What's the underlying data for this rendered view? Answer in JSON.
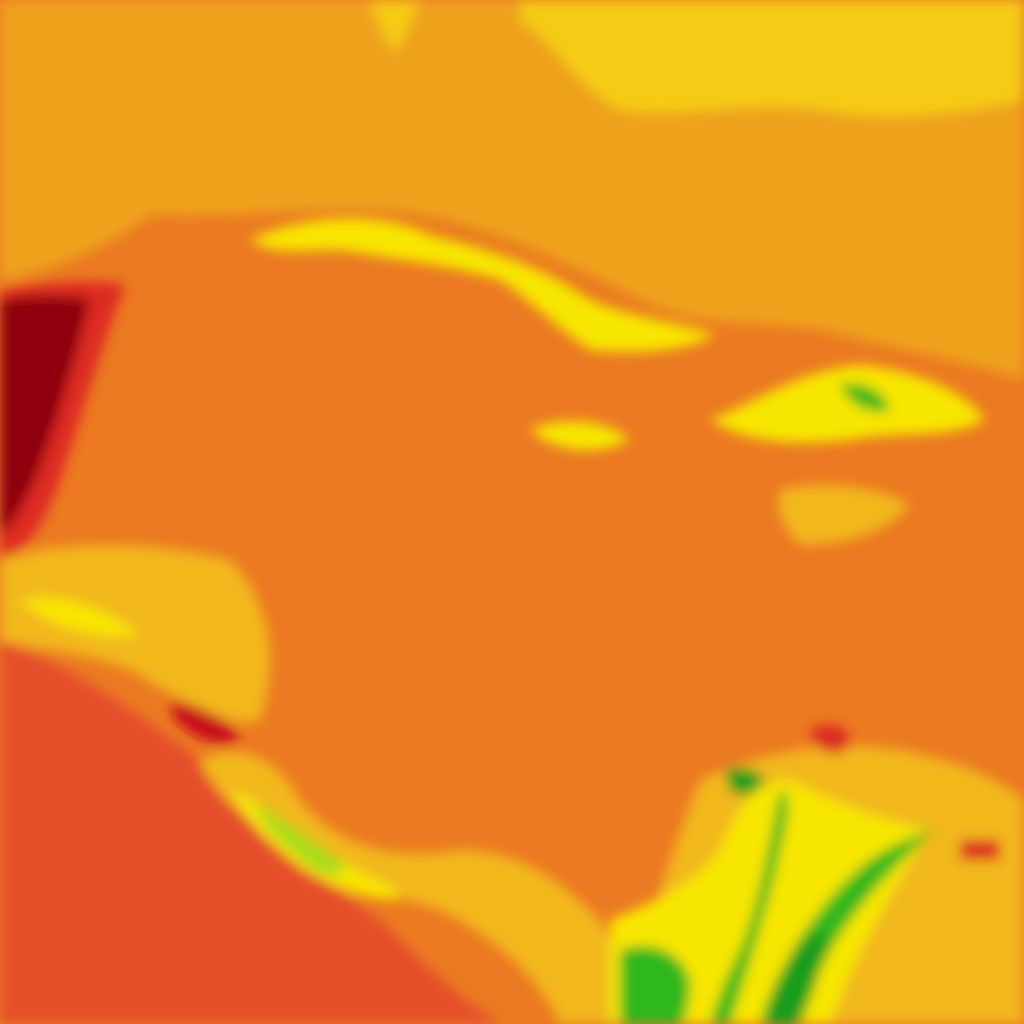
{
  "map": {
    "type": "weather-contour-overlay",
    "palette": {
      "warm_orange": "#EB7A22",
      "light_orange": "#EEA21F",
      "amber": "#F2B81A",
      "gold": "#F5CB12",
      "yellow": "#F7E600",
      "red_orange": "#E5502A",
      "red": "#DD2A22",
      "crimson": "#C80F1E",
      "dark_red": "#8E0010",
      "light_green": "#A8DC1A",
      "green": "#2DB81E",
      "dark_green": "#139E1A"
    }
  }
}
